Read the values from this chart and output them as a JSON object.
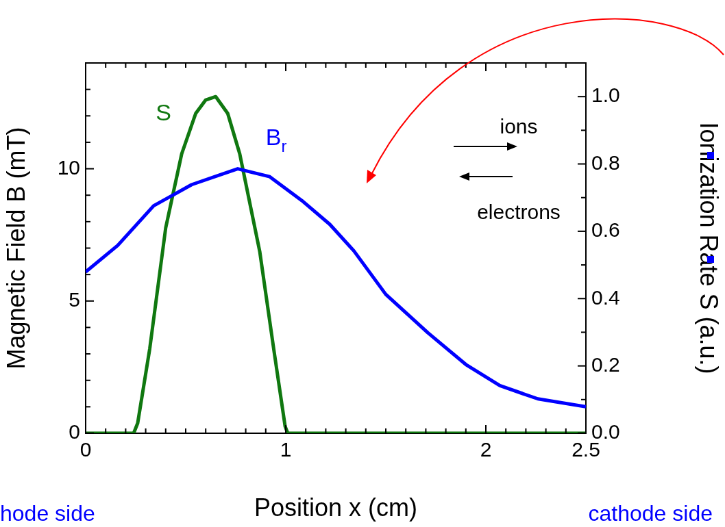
{
  "chart_data": {
    "type": "line",
    "xlabel": "Position x (cm)",
    "ylabel": "Magnetic Field B (mT)",
    "y2label": "Ionization Rate S (a.u.)",
    "xlim": [
      0,
      2.5
    ],
    "xticks": [
      0,
      {
        "value": 0.1,
        "label": null
      },
      {
        "value": 0.2,
        "label": null
      },
      {
        "value": 0.3,
        "label": null
      },
      {
        "value": 0.4,
        "label": null
      },
      {
        "value": 0.5,
        "label": null
      },
      {
        "value": 0.6,
        "label": null
      },
      {
        "value": 0.7,
        "label": null
      },
      {
        "value": 0.8,
        "label": null
      },
      {
        "value": 0.9,
        "label": null
      },
      1,
      {
        "value": 1.1,
        "label": null
      },
      {
        "value": 1.2,
        "label": null
      },
      {
        "value": 1.3,
        "label": null
      },
      {
        "value": 1.4,
        "label": null
      },
      {
        "value": 1.5,
        "label": null
      },
      {
        "value": 1.6,
        "label": null
      },
      {
        "value": 1.7,
        "label": null
      },
      {
        "value": 1.8,
        "label": null
      },
      {
        "value": 1.9,
        "label": null
      },
      2,
      {
        "value": 2.1,
        "label": null
      },
      {
        "value": 2.2,
        "label": null
      },
      {
        "value": 2.3,
        "label": null
      },
      {
        "value": 2.4,
        "label": null
      },
      2.5
    ],
    "ylim": [
      0,
      14
    ],
    "yticks": [
      0,
      {
        "value": 1,
        "label": null
      },
      {
        "value": 2,
        "label": null
      },
      {
        "value": 3,
        "label": null
      },
      {
        "value": 4,
        "label": null
      },
      5,
      {
        "value": 6,
        "label": null
      },
      {
        "value": 7,
        "label": null
      },
      {
        "value": 8,
        "label": null
      },
      {
        "value": 9,
        "label": null
      },
      10,
      {
        "value": 11,
        "label": null
      },
      {
        "value": 12,
        "label": null
      },
      {
        "value": 13,
        "label": null
      },
      {
        "value": 14,
        "label": null
      }
    ],
    "y2lim": [
      0,
      1.1
    ],
    "y2ticks": [
      {
        "value": 0,
        "label": "0.0"
      },
      {
        "value": 0.1,
        "label": null
      },
      0.2,
      {
        "value": 0.3,
        "label": null
      },
      0.4,
      {
        "value": 0.5,
        "label": null
      },
      0.6,
      {
        "value": 0.7,
        "label": null
      },
      0.8,
      {
        "value": 0.9,
        "label": null
      },
      {
        "value": 1,
        "label": "1.0"
      },
      {
        "value": 1.1,
        "label": null
      }
    ],
    "series": [
      {
        "name": "B$_{r}$",
        "color": "#0000ff",
        "x": [
          0,
          0.16,
          0.34,
          0.53,
          0.76,
          0.92,
          1.08,
          1.22,
          1.34,
          1.5,
          1.71,
          1.9,
          2.07,
          2.26,
          2.5
        ],
        "values": [
          6.1,
          7.1,
          8.6,
          9.4,
          10,
          9.7,
          8.8,
          7.9,
          6.9,
          5.25,
          3.8,
          2.6,
          1.8,
          1.3,
          1.0
        ]
      },
      {
        "name": "S",
        "color": "#107810",
        "axis": "y2",
        "x": [
          0,
          0.24,
          0.26,
          0.32,
          0.4,
          0.48,
          0.55,
          0.6,
          0.65,
          0.71,
          0.77,
          0.87,
          0.94,
          0.997,
          1.01,
          2.5
        ],
        "values": [
          0,
          0,
          0.03,
          0.25,
          0.61,
          0.83,
          0.95,
          0.99,
          1.0,
          0.95,
          0.83,
          0.54,
          0.25,
          0.02,
          0,
          0
        ]
      }
    ],
    "annotations": [
      "ions",
      "electrons",
      "hode side",
      "cathode side"
    ]
  }
}
